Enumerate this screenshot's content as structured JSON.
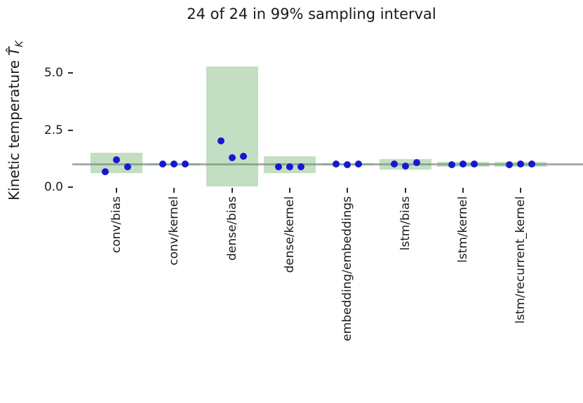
{
  "title": "24 of 24 in 99% sampling interval",
  "ylabel": {
    "text": "Kinetic temperature ",
    "math_main": "T̂",
    "math_sub": "K"
  },
  "colors": {
    "interval_green": "rgba(96,168,96,0.38)",
    "dot_blue": "#1717d4",
    "reference_line_gray": "#aaaaaa",
    "tick_text": "#1a1a1a"
  },
  "chart_data": {
    "type": "scatter",
    "title": "24 of 24 in 99% sampling interval",
    "ylabel": "Kinetic temperature T̂_K",
    "xlabel": "",
    "categories": [
      "conv/bias",
      "conv/kernel",
      "dense/bias",
      "dense/kernel",
      "embedding/embeddings",
      "lstm/bias",
      "lstm/kernel",
      "lstm/recurrent_kernel"
    ],
    "series": [
      {
        "name": "kinetic temperature estimates",
        "marker": "blue-dot",
        "points_per_category": [
          [
            0.67,
            1.21,
            0.89
          ],
          [
            1.0,
            1.0,
            1.0
          ],
          [
            2.02,
            1.29,
            1.35
          ],
          [
            0.9,
            0.88,
            0.89
          ],
          [
            1.0,
            0.99,
            1.01
          ],
          [
            1.01,
            0.93,
            1.08
          ],
          [
            0.99,
            1.0,
            1.0
          ],
          [
            0.98,
            1.01,
            1.01
          ]
        ]
      }
    ],
    "sampling_intervals_99pct": [
      [
        0.62,
        1.5
      ],
      [
        0.95,
        1.05
      ],
      [
        0.02,
        5.28
      ],
      [
        0.62,
        1.35
      ],
      [
        0.95,
        1.05
      ],
      [
        0.77,
        1.23
      ],
      [
        0.89,
        1.11
      ],
      [
        0.89,
        1.11
      ]
    ],
    "reference_line_y": 1.0,
    "yticks": [
      0.0,
      2.5,
      5.0
    ],
    "ytick_labels": [
      "0.0",
      "2.5",
      "5.0"
    ],
    "ylim": [
      -0.1,
      6.3
    ],
    "grid": false,
    "legend": "none"
  }
}
